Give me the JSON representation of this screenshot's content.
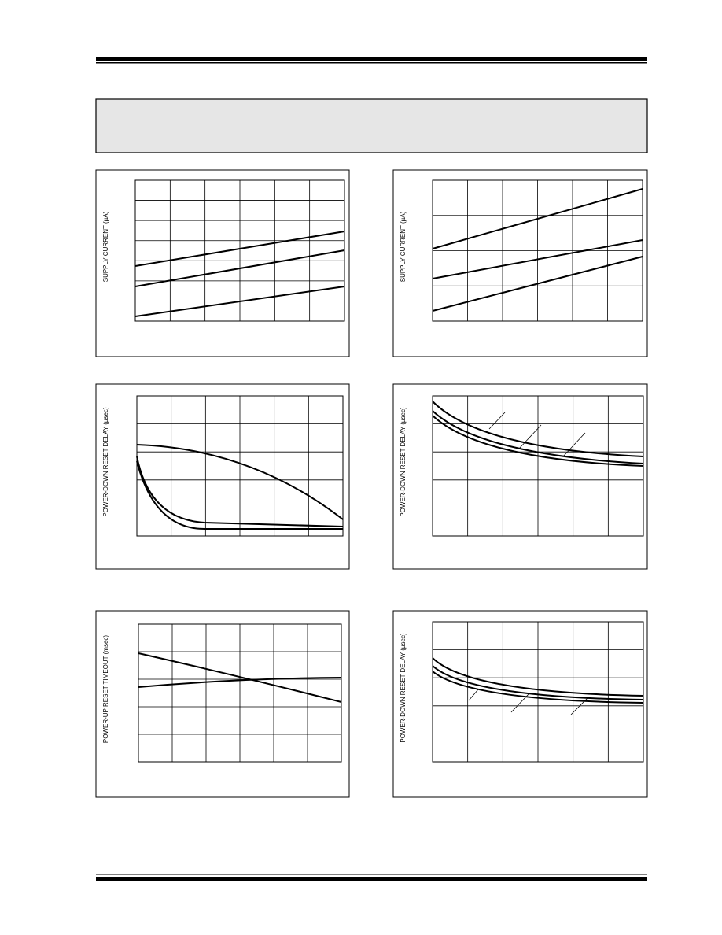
{
  "charts": [
    {
      "y_label": "SUPPLY CURRENT (µA)"
    },
    {
      "y_label": "SUPPLY CURRENT (µA)"
    },
    {
      "y_label": "POWER-DOWN RESET DELAY (µsec)"
    },
    {
      "y_label": "POWER-DOWN RESET DELAY (µsec)"
    },
    {
      "y_label": "POWER-UP RESET TIMEOUT (msec)"
    },
    {
      "y_label": "POWER-DOWN RESET DELAY (µsec)"
    }
  ]
}
